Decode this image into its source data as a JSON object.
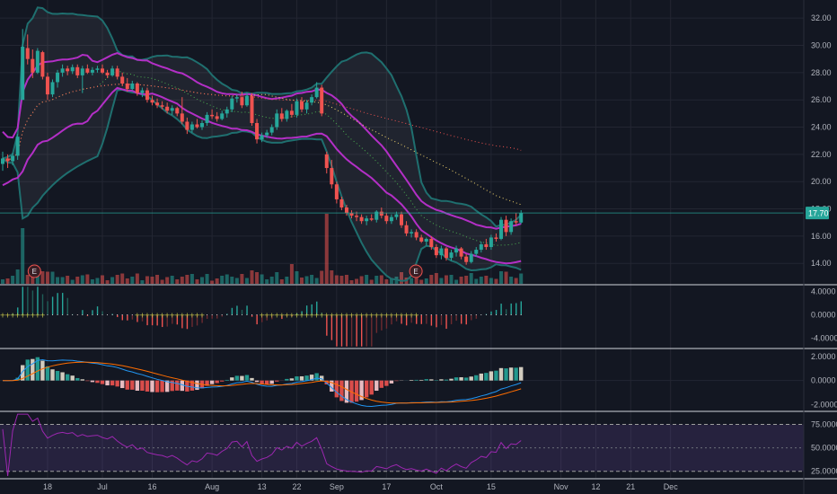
{
  "chart_data": [
    {
      "type": "candlestick",
      "pane": "price",
      "ylim": [
        12.5,
        33.0
      ],
      "y_ticks": [
        "32.00",
        "30.00",
        "28.00",
        "26.00",
        "24.00",
        "22.00",
        "20.00",
        "18.00",
        "16.00",
        "14.00"
      ],
      "last_price_label": "17.70",
      "earnings_markers": [
        "E",
        "E"
      ],
      "candles": [
        {
          "o": 21.3,
          "h": 22.2,
          "l": 20.8,
          "c": 21.7
        },
        {
          "o": 21.7,
          "h": 22.0,
          "l": 21.0,
          "c": 21.5
        },
        {
          "o": 21.5,
          "h": 22.1,
          "l": 21.2,
          "c": 21.9
        },
        {
          "o": 21.9,
          "h": 23.5,
          "l": 21.6,
          "c": 23.3
        },
        {
          "o": 26.0,
          "h": 31.2,
          "l": 26.0,
          "c": 29.9
        },
        {
          "o": 29.8,
          "h": 30.8,
          "l": 28.6,
          "c": 29.0
        },
        {
          "o": 29.0,
          "h": 29.7,
          "l": 27.6,
          "c": 28.0
        },
        {
          "o": 28.0,
          "h": 29.8,
          "l": 27.9,
          "c": 29.6
        },
        {
          "o": 29.5,
          "h": 29.6,
          "l": 27.5,
          "c": 27.7
        },
        {
          "o": 27.7,
          "h": 28.0,
          "l": 26.0,
          "c": 26.4
        },
        {
          "o": 26.4,
          "h": 27.5,
          "l": 26.2,
          "c": 27.3
        },
        {
          "o": 27.3,
          "h": 28.2,
          "l": 26.9,
          "c": 28.0
        },
        {
          "o": 28.0,
          "h": 28.6,
          "l": 27.7,
          "c": 28.3
        },
        {
          "o": 28.3,
          "h": 28.5,
          "l": 27.8,
          "c": 28.1
        },
        {
          "o": 28.1,
          "h": 28.6,
          "l": 27.9,
          "c": 28.4
        },
        {
          "o": 28.4,
          "h": 28.6,
          "l": 27.6,
          "c": 27.8
        },
        {
          "o": 27.8,
          "h": 28.5,
          "l": 26.5,
          "c": 28.3
        },
        {
          "o": 28.3,
          "h": 28.6,
          "l": 27.9,
          "c": 28.0
        },
        {
          "o": 28.0,
          "h": 28.4,
          "l": 27.8,
          "c": 28.2
        },
        {
          "o": 28.2,
          "h": 28.5,
          "l": 28.0,
          "c": 28.3
        },
        {
          "o": 28.3,
          "h": 28.6,
          "l": 27.9,
          "c": 28.0
        },
        {
          "o": 28.0,
          "h": 28.2,
          "l": 27.6,
          "c": 27.8
        },
        {
          "o": 27.8,
          "h": 28.5,
          "l": 27.7,
          "c": 28.3
        },
        {
          "o": 28.3,
          "h": 28.5,
          "l": 27.5,
          "c": 27.7
        },
        {
          "o": 27.7,
          "h": 28.0,
          "l": 27.0,
          "c": 27.2
        },
        {
          "o": 27.2,
          "h": 27.6,
          "l": 26.6,
          "c": 26.8
        },
        {
          "o": 26.8,
          "h": 27.4,
          "l": 26.7,
          "c": 27.2
        },
        {
          "o": 27.2,
          "h": 27.3,
          "l": 26.3,
          "c": 26.5
        },
        {
          "o": 26.5,
          "h": 26.9,
          "l": 26.2,
          "c": 26.7
        },
        {
          "o": 26.7,
          "h": 26.9,
          "l": 25.8,
          "c": 26.0
        },
        {
          "o": 26.0,
          "h": 26.3,
          "l": 25.6,
          "c": 25.8
        },
        {
          "o": 25.8,
          "h": 26.1,
          "l": 25.4,
          "c": 25.6
        },
        {
          "o": 25.6,
          "h": 25.9,
          "l": 25.3,
          "c": 25.5
        },
        {
          "o": 25.5,
          "h": 25.8,
          "l": 25.0,
          "c": 25.2
        },
        {
          "o": 25.2,
          "h": 25.6,
          "l": 24.9,
          "c": 25.4
        },
        {
          "o": 25.4,
          "h": 25.5,
          "l": 24.8,
          "c": 25.0
        },
        {
          "o": 25.0,
          "h": 26.2,
          "l": 24.2,
          "c": 24.4
        },
        {
          "o": 24.4,
          "h": 24.7,
          "l": 23.5,
          "c": 23.8
        },
        {
          "o": 23.8,
          "h": 24.4,
          "l": 23.6,
          "c": 24.2
        },
        {
          "o": 24.2,
          "h": 24.6,
          "l": 23.9,
          "c": 24.0
        },
        {
          "o": 24.0,
          "h": 24.5,
          "l": 23.8,
          "c": 24.3
        },
        {
          "o": 24.3,
          "h": 25.1,
          "l": 24.1,
          "c": 24.9
        },
        {
          "o": 24.9,
          "h": 25.3,
          "l": 24.6,
          "c": 24.8
        },
        {
          "o": 24.8,
          "h": 25.1,
          "l": 24.4,
          "c": 24.6
        },
        {
          "o": 24.6,
          "h": 25.2,
          "l": 24.5,
          "c": 25.0
        },
        {
          "o": 25.0,
          "h": 25.5,
          "l": 24.7,
          "c": 25.3
        },
        {
          "o": 25.3,
          "h": 26.3,
          "l": 25.1,
          "c": 26.1
        },
        {
          "o": 26.1,
          "h": 26.4,
          "l": 25.8,
          "c": 26.2
        },
        {
          "o": 26.2,
          "h": 26.6,
          "l": 25.4,
          "c": 25.6
        },
        {
          "o": 25.6,
          "h": 26.5,
          "l": 25.5,
          "c": 26.3
        },
        {
          "o": 26.3,
          "h": 26.5,
          "l": 24.1,
          "c": 24.3
        },
        {
          "o": 24.3,
          "h": 24.6,
          "l": 22.8,
          "c": 23.1
        },
        {
          "o": 23.1,
          "h": 23.6,
          "l": 22.9,
          "c": 23.4
        },
        {
          "o": 23.4,
          "h": 23.8,
          "l": 23.2,
          "c": 23.6
        },
        {
          "o": 23.6,
          "h": 24.2,
          "l": 23.4,
          "c": 24.0
        },
        {
          "o": 24.0,
          "h": 25.3,
          "l": 23.8,
          "c": 25.0
        },
        {
          "o": 25.0,
          "h": 25.4,
          "l": 24.4,
          "c": 24.6
        },
        {
          "o": 24.6,
          "h": 25.3,
          "l": 24.4,
          "c": 25.2
        },
        {
          "o": 25.2,
          "h": 25.7,
          "l": 24.7,
          "c": 24.9
        },
        {
          "o": 24.9,
          "h": 26.1,
          "l": 24.7,
          "c": 25.9
        },
        {
          "o": 25.9,
          "h": 26.2,
          "l": 25.1,
          "c": 25.3
        },
        {
          "o": 25.3,
          "h": 26.0,
          "l": 25.0,
          "c": 25.8
        },
        {
          "o": 25.8,
          "h": 26.4,
          "l": 25.6,
          "c": 26.2
        },
        {
          "o": 26.2,
          "h": 27.3,
          "l": 26.1,
          "c": 26.9
        },
        {
          "o": 26.9,
          "h": 27.1,
          "l": 24.8,
          "c": 25.0
        },
        {
          "o": 22.0,
          "h": 22.2,
          "l": 20.6,
          "c": 21.0
        },
        {
          "o": 21.0,
          "h": 21.6,
          "l": 19.5,
          "c": 19.8
        },
        {
          "o": 19.8,
          "h": 20.0,
          "l": 18.4,
          "c": 18.7
        },
        {
          "o": 18.7,
          "h": 18.9,
          "l": 17.9,
          "c": 18.1
        },
        {
          "o": 18.1,
          "h": 18.3,
          "l": 17.5,
          "c": 17.7
        },
        {
          "o": 17.7,
          "h": 17.9,
          "l": 17.3,
          "c": 17.5
        },
        {
          "o": 17.5,
          "h": 17.8,
          "l": 17.1,
          "c": 17.4
        },
        {
          "o": 17.4,
          "h": 17.6,
          "l": 16.9,
          "c": 17.1
        },
        {
          "o": 17.1,
          "h": 17.5,
          "l": 16.8,
          "c": 17.3
        },
        {
          "o": 17.3,
          "h": 17.6,
          "l": 17.1,
          "c": 17.2
        },
        {
          "o": 17.2,
          "h": 17.9,
          "l": 17.0,
          "c": 17.8
        },
        {
          "o": 17.8,
          "h": 18.1,
          "l": 17.3,
          "c": 17.5
        },
        {
          "o": 17.5,
          "h": 17.7,
          "l": 16.9,
          "c": 17.1
        },
        {
          "o": 17.1,
          "h": 17.6,
          "l": 16.9,
          "c": 17.4
        },
        {
          "o": 17.4,
          "h": 17.8,
          "l": 17.2,
          "c": 17.6
        },
        {
          "o": 17.6,
          "h": 17.8,
          "l": 16.6,
          "c": 16.8
        },
        {
          "o": 16.8,
          "h": 17.1,
          "l": 16.0,
          "c": 16.2
        },
        {
          "o": 16.2,
          "h": 16.5,
          "l": 15.9,
          "c": 16.3
        },
        {
          "o": 16.3,
          "h": 16.5,
          "l": 15.7,
          "c": 15.9
        },
        {
          "o": 15.9,
          "h": 16.1,
          "l": 15.5,
          "c": 15.6
        },
        {
          "o": 15.6,
          "h": 15.9,
          "l": 15.3,
          "c": 15.8
        },
        {
          "o": 15.8,
          "h": 16.0,
          "l": 15.0,
          "c": 15.2
        },
        {
          "o": 15.2,
          "h": 15.4,
          "l": 14.4,
          "c": 14.6
        },
        {
          "o": 14.6,
          "h": 15.3,
          "l": 14.3,
          "c": 15.1
        },
        {
          "o": 15.1,
          "h": 15.2,
          "l": 14.2,
          "c": 14.4
        },
        {
          "o": 14.4,
          "h": 15.0,
          "l": 14.2,
          "c": 14.8
        },
        {
          "o": 14.8,
          "h": 15.3,
          "l": 14.5,
          "c": 15.1
        },
        {
          "o": 15.1,
          "h": 15.2,
          "l": 14.3,
          "c": 14.5
        },
        {
          "o": 14.5,
          "h": 14.7,
          "l": 13.9,
          "c": 14.1
        },
        {
          "o": 14.1,
          "h": 14.9,
          "l": 14.0,
          "c": 14.7
        },
        {
          "o": 14.7,
          "h": 15.2,
          "l": 14.5,
          "c": 15.0
        },
        {
          "o": 15.0,
          "h": 15.6,
          "l": 14.8,
          "c": 15.4
        },
        {
          "o": 15.4,
          "h": 15.8,
          "l": 15.0,
          "c": 15.2
        },
        {
          "o": 15.2,
          "h": 16.1,
          "l": 15.0,
          "c": 15.9
        },
        {
          "o": 15.9,
          "h": 16.2,
          "l": 15.6,
          "c": 15.8
        },
        {
          "o": 15.8,
          "h": 17.4,
          "l": 15.7,
          "c": 17.2
        },
        {
          "o": 17.2,
          "h": 17.5,
          "l": 16.0,
          "c": 16.3
        },
        {
          "o": 16.3,
          "h": 17.3,
          "l": 16.1,
          "c": 17.1
        },
        {
          "o": 17.1,
          "h": 17.7,
          "l": 16.8,
          "c": 17.0
        },
        {
          "o": 17.0,
          "h": 17.9,
          "l": 16.9,
          "c": 17.7
        }
      ]
    },
    {
      "type": "bar",
      "pane": "momentum",
      "ylim": [
        -5.6,
        5.0
      ],
      "y_ticks": [
        "4.0000",
        "0.0000",
        "-4.0000"
      ]
    },
    {
      "type": "bar",
      "pane": "macd",
      "ylim": [
        -2.5,
        2.6
      ],
      "y_ticks": [
        "2.0000",
        "0.0000",
        "-2.0000"
      ]
    },
    {
      "type": "line",
      "pane": "rsi",
      "ylim": [
        18,
        88
      ],
      "y_ticks": [
        "75.0000",
        "50.0000",
        "25.0000"
      ]
    }
  ],
  "x_axis": {
    "labels": [
      "18",
      "Jul",
      "16",
      "Aug",
      "13",
      "22",
      "Sep",
      "17",
      "Oct",
      "15",
      "Nov",
      "12",
      "21",
      "Dec"
    ],
    "label_bars": [
      9,
      20,
      30,
      42,
      52,
      59,
      67,
      77,
      87,
      98,
      112,
      119,
      126,
      134
    ],
    "total_bar_slots": 135
  },
  "colors": {
    "background": "#131722",
    "grid": "#232632",
    "up": "#26a69a",
    "down": "#ef5350",
    "bollinger": "#1f6f6f",
    "envelope": "#b32fc6",
    "last_price_badge": "#26a69a",
    "squeeze_on": "#c8c84a",
    "squeeze_off": "#e0e0e0",
    "rsi_line": "#9c27b0",
    "rsi_band": "#7e57c2"
  }
}
